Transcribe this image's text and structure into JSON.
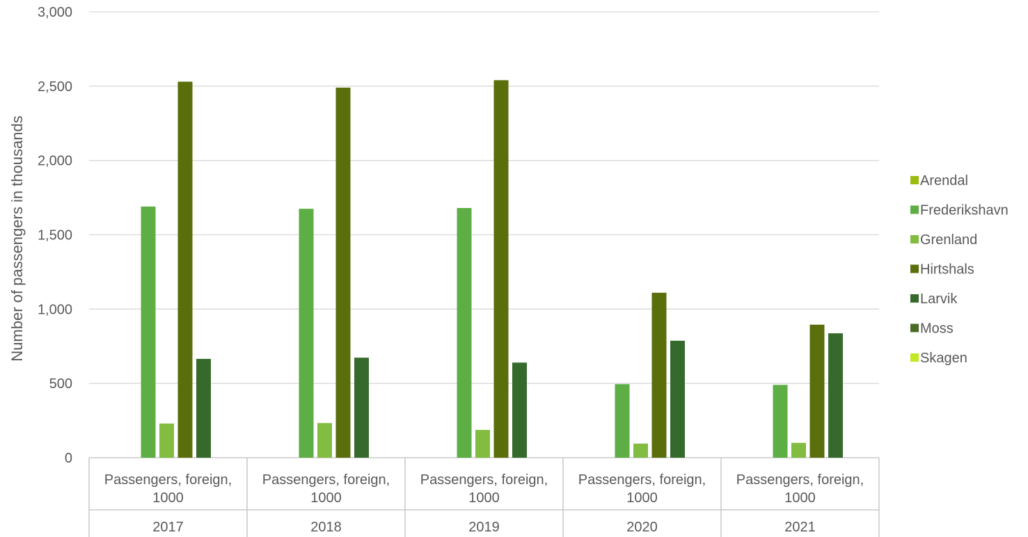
{
  "chart_data": {
    "type": "bar",
    "title": "",
    "xlabel": "",
    "ylabel": "Number of passengers in thousands",
    "ylim": [
      0,
      3000
    ],
    "yticks": [
      0,
      500,
      1000,
      1500,
      2000,
      2500,
      3000
    ],
    "ytick_labels": [
      "0",
      "500",
      "1,000",
      "1,500",
      "2,000",
      "2,500",
      "3,000"
    ],
    "categories": [
      {
        "label_line1": "Passengers, foreign,",
        "label_line2": "1000",
        "year": "2017"
      },
      {
        "label_line1": "Passengers, foreign,",
        "label_line2": "1000",
        "year": "2018"
      },
      {
        "label_line1": "Passengers, foreign,",
        "label_line2": "1000",
        "year": "2019"
      },
      {
        "label_line1": "Passengers, foreign,",
        "label_line2": "1000",
        "year": "2020"
      },
      {
        "label_line1": "Passengers, foreign,",
        "label_line2": "1000",
        "year": "2021"
      }
    ],
    "series": [
      {
        "name": "Arendal",
        "color": "#9BBB0F",
        "values": [
          0,
          0,
          0,
          0,
          0
        ]
      },
      {
        "name": "Frederikshavn",
        "color": "#5DAE45",
        "values": [
          1690,
          1675,
          1680,
          495,
          490
        ]
      },
      {
        "name": "Grenland",
        "color": "#82BC41",
        "values": [
          230,
          233,
          187,
          95,
          100
        ]
      },
      {
        "name": "Hirtshals",
        "color": "#5A6E0B",
        "values": [
          2530,
          2490,
          2540,
          1110,
          895
        ]
      },
      {
        "name": "Larvik",
        "color": "#356A2C",
        "values": [
          665,
          673,
          640,
          787,
          837
        ]
      },
      {
        "name": "Moss",
        "color": "#4A6D25",
        "values": [
          0,
          0,
          0,
          0,
          0
        ]
      },
      {
        "name": "Skagen",
        "color": "#C0E824",
        "values": [
          0,
          0,
          0,
          0,
          0
        ]
      }
    ],
    "grid": true,
    "legend_position": "right"
  }
}
